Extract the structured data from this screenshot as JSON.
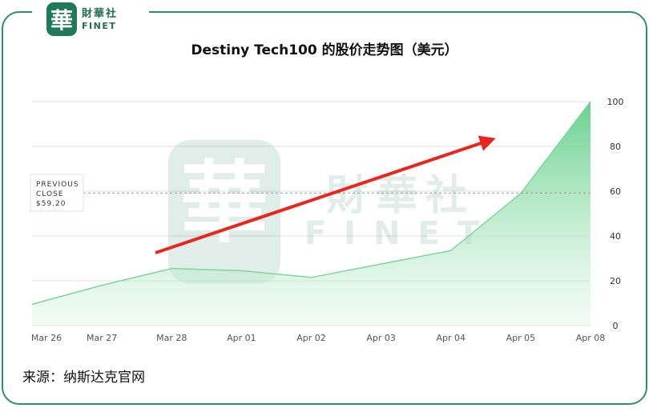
{
  "brand": {
    "seal_char": "華",
    "name_cn": "財華社",
    "name_en": "FINET",
    "watermark_cn": "財華社",
    "watermark_en": "FINET",
    "accent_color": "#2e8f67"
  },
  "chart_data": {
    "type": "area",
    "title": "Destiny Tech100 的股价走势图（美元）",
    "xlabel": "",
    "ylabel": "",
    "categories": [
      "Mar 26",
      "Mar 27",
      "Mar 28",
      "Apr 01",
      "Apr 02",
      "Apr 03",
      "Apr 04",
      "Apr 05",
      "Apr 08"
    ],
    "series": [
      {
        "values": [
          9.5,
          18,
          25.5,
          24.5,
          21.5,
          27.5,
          33.5,
          59,
          100
        ],
        "color": "#7ed69a"
      }
    ],
    "ylim": [
      0,
      100
    ],
    "yticks": [
      0,
      20,
      40,
      60,
      80,
      100
    ],
    "y_axis_side": "right",
    "grid": true,
    "reference_line": {
      "value": 59.2,
      "label_lines": [
        "PREVIOUS",
        "CLOSE",
        "$59.20"
      ]
    },
    "annotation": {
      "type": "arrow",
      "color": "#e8261e",
      "meaning": "upward trend"
    }
  },
  "source_text": "来源：纳斯达克官网"
}
